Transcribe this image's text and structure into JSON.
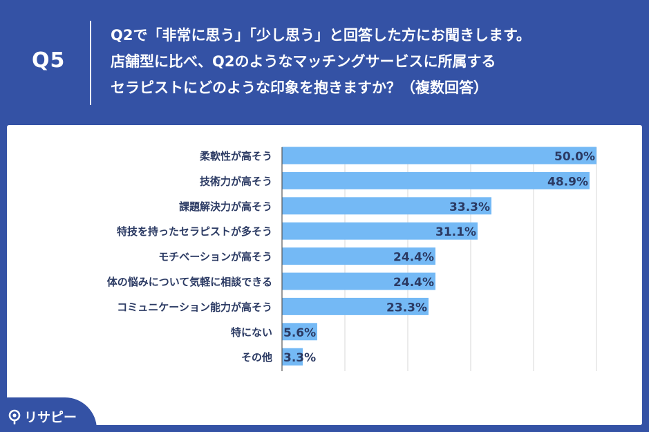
{
  "header": {
    "question_number": "Q5",
    "question_lines": [
      "Q2で「非常に思う」「少し思う」と回答した方にお聞きします。",
      "店舗型に比べ、Q2のようなマッチングサービスに所属する",
      "セラピストにどのような印象を抱きますか？（複数回答）"
    ]
  },
  "brand": {
    "name": "リサピー",
    "icon": "search-pin-icon"
  },
  "colors": {
    "background": "#3452a5",
    "bar": "#74b9f5",
    "label_text": "#2b3a63",
    "grid": "#d7d7d7"
  },
  "chart_data": {
    "type": "bar",
    "orientation": "horizontal",
    "categories": [
      "柔軟性が高そう",
      "技術力が高そう",
      "課題解決力が高そう",
      "特技を持ったセラピストが多そう",
      "モチベーションが高そう",
      "体の悩みについて気軽に相談できる",
      "コミュニケーション能力が高そう",
      "特にない",
      "その他"
    ],
    "values": [
      50.0,
      48.9,
      33.3,
      31.1,
      24.4,
      24.4,
      23.3,
      5.6,
      3.3
    ],
    "value_labels": [
      "50.0%",
      "48.9%",
      "33.3%",
      "31.1%",
      "24.4%",
      "24.4%",
      "23.3%",
      "5.6%",
      "3.3%"
    ],
    "xlim": [
      0,
      50
    ],
    "grid": true
  }
}
